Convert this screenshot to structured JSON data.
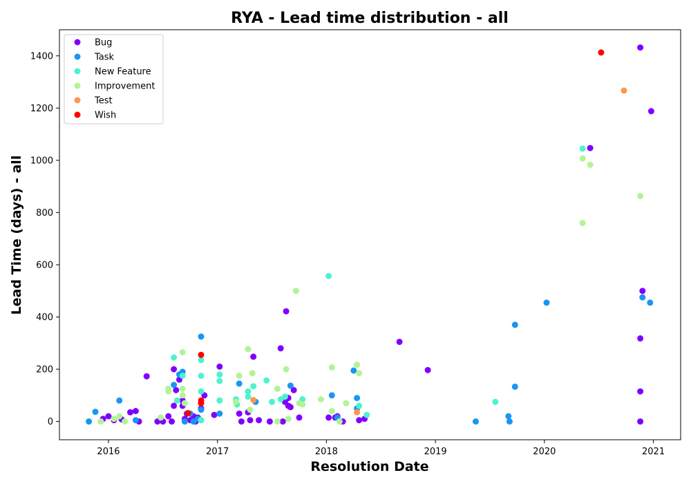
{
  "chart_data": {
    "type": "scatter",
    "title": "RYA - Lead time distribution - all",
    "xlabel": "Resolution Date",
    "ylabel": "Lead Time (days) - all",
    "xlim": [
      2015.55,
      2021.25
    ],
    "ylim": [
      -70,
      1500
    ],
    "xticks": [
      2016,
      2017,
      2018,
      2019,
      2020,
      2021
    ],
    "xtick_labels": [
      "2016",
      "2017",
      "2018",
      "2019",
      "2020",
      "2021"
    ],
    "yticks": [
      0,
      200,
      400,
      600,
      800,
      1000,
      1200,
      1400
    ],
    "ytick_labels": [
      "0",
      "200",
      "400",
      "600",
      "800",
      "1000",
      "1200",
      "1400"
    ],
    "grid": false,
    "legend_position": "top-left",
    "series": [
      {
        "name": "Bug",
        "color": "#8000ff",
        "points": [
          [
            2015.95,
            10
          ],
          [
            2016.0,
            20
          ],
          [
            2016.05,
            5
          ],
          [
            2016.12,
            8
          ],
          [
            2016.2,
            35
          ],
          [
            2016.25,
            40
          ],
          [
            2016.28,
            0
          ],
          [
            2016.35,
            173
          ],
          [
            2016.45,
            0
          ],
          [
            2016.5,
            0
          ],
          [
            2016.55,
            20
          ],
          [
            2016.58,
            0
          ],
          [
            2016.6,
            60
          ],
          [
            2016.6,
            200
          ],
          [
            2016.62,
            120
          ],
          [
            2016.65,
            160
          ],
          [
            2016.68,
            80
          ],
          [
            2016.68,
            60
          ],
          [
            2016.7,
            10
          ],
          [
            2016.72,
            30
          ],
          [
            2016.75,
            5
          ],
          [
            2016.78,
            20
          ],
          [
            2016.8,
            0
          ],
          [
            2016.82,
            15
          ],
          [
            2016.85,
            50
          ],
          [
            2016.88,
            100
          ],
          [
            2016.97,
            25
          ],
          [
            2017.02,
            210
          ],
          [
            2017.2,
            30
          ],
          [
            2017.22,
            0
          ],
          [
            2017.28,
            35
          ],
          [
            2017.3,
            5
          ],
          [
            2017.33,
            248
          ],
          [
            2017.38,
            5
          ],
          [
            2017.48,
            0
          ],
          [
            2017.58,
            280
          ],
          [
            2017.6,
            0
          ],
          [
            2017.62,
            75
          ],
          [
            2017.63,
            422
          ],
          [
            2017.65,
            90
          ],
          [
            2017.65,
            60
          ],
          [
            2017.67,
            55
          ],
          [
            2017.7,
            120
          ],
          [
            2017.75,
            15
          ],
          [
            2018.02,
            15
          ],
          [
            2018.08,
            15
          ],
          [
            2018.1,
            20
          ],
          [
            2018.15,
            0
          ],
          [
            2018.3,
            5
          ],
          [
            2018.35,
            10
          ],
          [
            2018.67,
            305
          ],
          [
            2018.93,
            197
          ],
          [
            2020.42,
            1047
          ],
          [
            2020.88,
            1432
          ],
          [
            2020.88,
            115
          ],
          [
            2020.88,
            318
          ],
          [
            2020.9,
            500
          ],
          [
            2020.88,
            0
          ],
          [
            2020.98,
            1188
          ]
        ]
      },
      {
        "name": "Task",
        "color": "#1996f3",
        "points": [
          [
            2015.82,
            0
          ],
          [
            2015.88,
            37
          ],
          [
            2016.1,
            80
          ],
          [
            2016.25,
            5
          ],
          [
            2016.6,
            140
          ],
          [
            2016.65,
            180
          ],
          [
            2016.68,
            190
          ],
          [
            2016.7,
            0
          ],
          [
            2016.75,
            30
          ],
          [
            2016.78,
            0
          ],
          [
            2016.82,
            10
          ],
          [
            2016.85,
            325
          ],
          [
            2016.85,
            45
          ],
          [
            2017.02,
            30
          ],
          [
            2017.2,
            145
          ],
          [
            2017.35,
            75
          ],
          [
            2017.67,
            137
          ],
          [
            2018.05,
            100
          ],
          [
            2018.1,
            15
          ],
          [
            2018.25,
            195
          ],
          [
            2018.28,
            90
          ],
          [
            2018.28,
            50
          ],
          [
            2019.37,
            0
          ],
          [
            2019.67,
            20
          ],
          [
            2019.68,
            0
          ],
          [
            2019.73,
            370
          ],
          [
            2019.73,
            133
          ],
          [
            2020.02,
            455
          ],
          [
            2020.9,
            475
          ],
          [
            2020.97,
            455
          ]
        ]
      },
      {
        "name": "New Feature",
        "color": "#4df3ce",
        "points": [
          [
            2016.6,
            245
          ],
          [
            2016.63,
            80
          ],
          [
            2016.68,
            175
          ],
          [
            2016.85,
            235
          ],
          [
            2016.85,
            175
          ],
          [
            2016.85,
            115
          ],
          [
            2016.85,
            5
          ],
          [
            2017.02,
            180
          ],
          [
            2017.02,
            155
          ],
          [
            2017.02,
            80
          ],
          [
            2017.17,
            85
          ],
          [
            2017.18,
            65
          ],
          [
            2017.28,
            115
          ],
          [
            2017.28,
            95
          ],
          [
            2017.33,
            135
          ],
          [
            2017.45,
            157
          ],
          [
            2017.5,
            75
          ],
          [
            2017.58,
            85
          ],
          [
            2017.62,
            95
          ],
          [
            2017.78,
            85
          ],
          [
            2018.02,
            557
          ],
          [
            2018.3,
            60
          ],
          [
            2018.37,
            25
          ],
          [
            2019.55,
            75
          ],
          [
            2020.35,
            1045
          ]
        ]
      },
      {
        "name": "Improvement",
        "color": "#b2f396",
        "points": [
          [
            2015.93,
            0
          ],
          [
            2016.05,
            10
          ],
          [
            2016.1,
            20
          ],
          [
            2016.15,
            0
          ],
          [
            2016.48,
            15
          ],
          [
            2016.55,
            125
          ],
          [
            2016.55,
            115
          ],
          [
            2016.68,
            265
          ],
          [
            2016.68,
            125
          ],
          [
            2016.68,
            100
          ],
          [
            2016.7,
            70
          ],
          [
            2017.17,
            75
          ],
          [
            2017.2,
            175
          ],
          [
            2017.28,
            277
          ],
          [
            2017.32,
            185
          ],
          [
            2017.3,
            45
          ],
          [
            2017.55,
            125
          ],
          [
            2017.55,
            0
          ],
          [
            2017.63,
            200
          ],
          [
            2017.65,
            10
          ],
          [
            2017.72,
            500
          ],
          [
            2017.75,
            70
          ],
          [
            2017.78,
            65
          ],
          [
            2017.95,
            85
          ],
          [
            2018.05,
            207
          ],
          [
            2018.05,
            40
          ],
          [
            2018.12,
            0
          ],
          [
            2018.18,
            70
          ],
          [
            2018.28,
            217
          ],
          [
            2018.3,
            185
          ],
          [
            2020.35,
            1007
          ],
          [
            2020.35,
            760
          ],
          [
            2020.42,
            983
          ],
          [
            2020.88,
            863
          ]
        ]
      },
      {
        "name": "Test",
        "color": "#ff964f",
        "points": [
          [
            2017.33,
            82
          ],
          [
            2018.28,
            35
          ],
          [
            2020.73,
            1267
          ]
        ]
      },
      {
        "name": "Wish",
        "color": "#ff0000",
        "points": [
          [
            2016.73,
            32
          ],
          [
            2016.85,
            255
          ],
          [
            2016.85,
            80
          ],
          [
            2016.85,
            70
          ],
          [
            2020.52,
            1413
          ]
        ]
      }
    ]
  }
}
